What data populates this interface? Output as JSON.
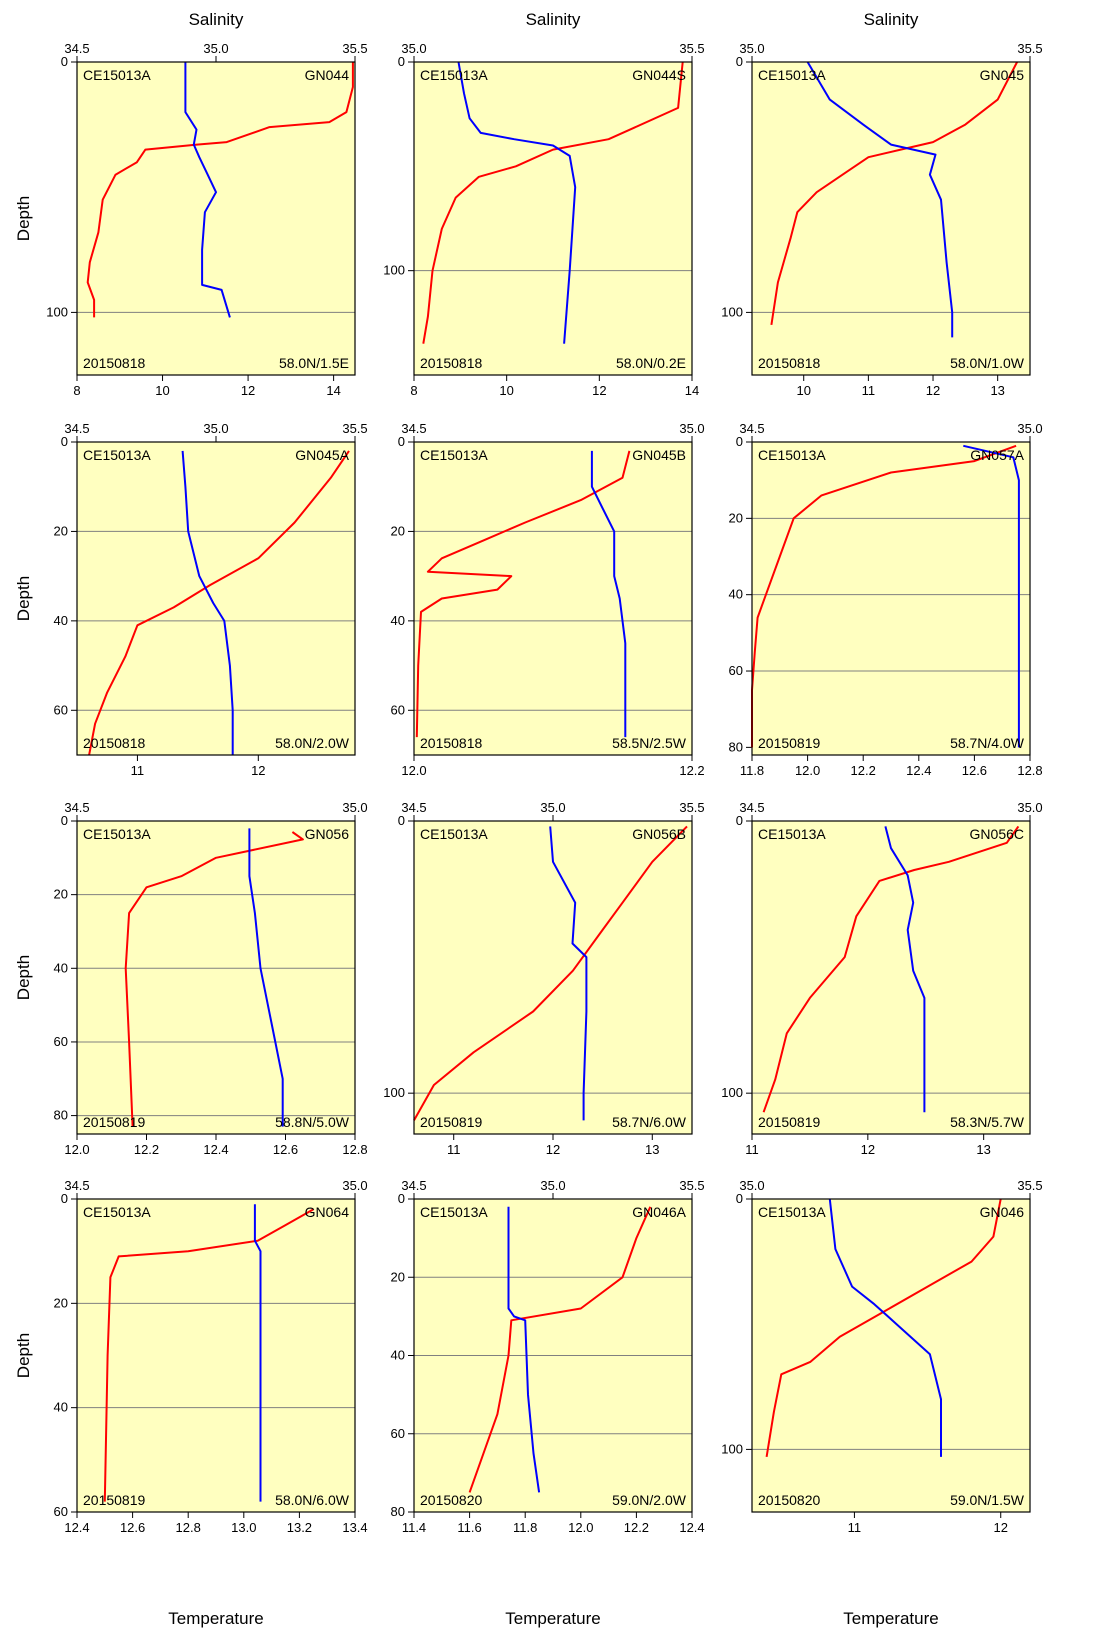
{
  "figure": {
    "column_label": "Salinity",
    "y_axis_label": "Depth",
    "x_axis_label": "Temperature"
  },
  "colors": {
    "background": "#ffffc0",
    "temperature_line": "#ff0000",
    "salinity_line": "#0000ff",
    "grid": "#808080"
  },
  "chart_data": [
    {
      "type": "line",
      "cruise": "CE15013A",
      "station": "GN044",
      "date": "20150818",
      "position": "58.0N/1.5E",
      "depth_range": [
        0,
        125
      ],
      "depth_ticks": [
        0,
        100
      ],
      "depth_grid": [
        100
      ],
      "temp_range": [
        8,
        14.5
      ],
      "temp_ticks": [
        8,
        10,
        12,
        14
      ],
      "sal_range": [
        34.5,
        35.5
      ],
      "sal_ticks": [
        "34.5",
        "35.0",
        "35.5"
      ],
      "temperature": [
        [
          14.45,
          0
        ],
        [
          14.45,
          10
        ],
        [
          14.3,
          20
        ],
        [
          13.9,
          24
        ],
        [
          12.5,
          26
        ],
        [
          11.5,
          32
        ],
        [
          10.8,
          33
        ],
        [
          9.6,
          35
        ],
        [
          9.4,
          40
        ],
        [
          8.9,
          45
        ],
        [
          8.6,
          55
        ],
        [
          8.5,
          68
        ],
        [
          8.3,
          80
        ],
        [
          8.25,
          88
        ],
        [
          8.4,
          95
        ],
        [
          8.4,
          102
        ]
      ],
      "salinity": [
        [
          34.89,
          0
        ],
        [
          34.89,
          20
        ],
        [
          34.93,
          27
        ],
        [
          34.92,
          33
        ],
        [
          34.94,
          38
        ],
        [
          34.97,
          45
        ],
        [
          35.0,
          52
        ],
        [
          34.96,
          60
        ],
        [
          34.95,
          75
        ],
        [
          34.95,
          89
        ],
        [
          35.02,
          91
        ],
        [
          35.05,
          102
        ]
      ]
    },
    {
      "type": "line",
      "cruise": "CE15013A",
      "station": "GN044S",
      "date": "20150818",
      "position": "58.0N/0.2E",
      "depth_range": [
        0,
        150
      ],
      "depth_ticks": [
        0,
        100
      ],
      "depth_grid": [
        100
      ],
      "temp_range": [
        8,
        14
      ],
      "temp_ticks": [
        8,
        10,
        12,
        14
      ],
      "sal_range": [
        35.0,
        35.5
      ],
      "sal_ticks": [
        "35.0",
        "35.5"
      ],
      "temperature": [
        [
          13.8,
          0
        ],
        [
          13.7,
          22
        ],
        [
          12.2,
          37
        ],
        [
          11.0,
          42
        ],
        [
          10.2,
          50
        ],
        [
          9.4,
          55
        ],
        [
          8.9,
          65
        ],
        [
          8.6,
          80
        ],
        [
          8.4,
          100
        ],
        [
          8.3,
          122
        ],
        [
          8.2,
          135
        ]
      ],
      "salinity": [
        [
          35.08,
          0
        ],
        [
          35.09,
          15
        ],
        [
          35.1,
          27
        ],
        [
          35.12,
          34
        ],
        [
          35.18,
          37
        ],
        [
          35.25,
          40
        ],
        [
          35.28,
          45
        ],
        [
          35.29,
          60
        ],
        [
          35.28,
          100
        ],
        [
          35.27,
          135
        ]
      ]
    },
    {
      "type": "line",
      "cruise": "CE15013A",
      "station": "GN045",
      "date": "20150818",
      "position": "58.0N/1.0W",
      "depth_range": [
        0,
        125
      ],
      "depth_ticks": [
        0,
        100
      ],
      "depth_grid": [
        100
      ],
      "temp_range": [
        9.2,
        13.5
      ],
      "temp_ticks": [
        10,
        11,
        12,
        13
      ],
      "sal_range": [
        35.0,
        35.5
      ],
      "sal_ticks": [
        "35.0",
        "35.5"
      ],
      "temperature": [
        [
          13.3,
          0
        ],
        [
          13.0,
          15
        ],
        [
          12.5,
          25
        ],
        [
          12.0,
          32
        ],
        [
          11.5,
          35
        ],
        [
          11.0,
          38
        ],
        [
          10.6,
          45
        ],
        [
          10.2,
          52
        ],
        [
          9.9,
          60
        ],
        [
          9.8,
          70
        ],
        [
          9.6,
          88
        ],
        [
          9.5,
          105
        ]
      ],
      "salinity": [
        [
          35.1,
          0
        ],
        [
          35.14,
          15
        ],
        [
          35.2,
          25
        ],
        [
          35.25,
          33
        ],
        [
          35.33,
          37
        ],
        [
          35.32,
          45
        ],
        [
          35.34,
          55
        ],
        [
          35.35,
          80
        ],
        [
          35.36,
          100
        ],
        [
          35.36,
          110
        ]
      ]
    },
    {
      "type": "line",
      "cruise": "CE15013A",
      "station": "GN045A",
      "date": "20150818",
      "position": "58.0N/2.0W",
      "depth_range": [
        0,
        70
      ],
      "depth_ticks": [
        0,
        20,
        40,
        60
      ],
      "depth_grid": [
        20,
        40,
        60
      ],
      "temp_range": [
        10.5,
        12.8
      ],
      "temp_ticks": [
        11,
        12
      ],
      "sal_range": [
        34.5,
        35.5
      ],
      "sal_ticks": [
        "34.5",
        "35.0",
        "35.5"
      ],
      "temperature": [
        [
          12.75,
          2
        ],
        [
          12.6,
          8
        ],
        [
          12.3,
          18
        ],
        [
          12.0,
          26
        ],
        [
          11.6,
          32
        ],
        [
          11.3,
          37
        ],
        [
          11.0,
          41
        ],
        [
          10.9,
          48
        ],
        [
          10.75,
          56
        ],
        [
          10.65,
          63
        ],
        [
          10.6,
          70
        ]
      ],
      "salinity": [
        [
          34.88,
          2
        ],
        [
          34.89,
          10
        ],
        [
          34.9,
          20
        ],
        [
          34.94,
          30
        ],
        [
          34.99,
          36
        ],
        [
          35.03,
          40
        ],
        [
          35.05,
          50
        ],
        [
          35.06,
          60
        ],
        [
          35.06,
          70
        ]
      ]
    },
    {
      "type": "line",
      "cruise": "CE15013A",
      "station": "GN045B",
      "date": "20150818",
      "position": "58.5N/2.5W",
      "depth_range": [
        0,
        70
      ],
      "depth_ticks": [
        0,
        20,
        40,
        60
      ],
      "depth_grid": [
        20,
        40,
        60
      ],
      "temp_range": [
        12.0,
        12.2
      ],
      "temp_ticks": [
        "12.0",
        "12.2"
      ],
      "sal_range": [
        34.5,
        35.0
      ],
      "sal_ticks": [
        "34.5",
        "35.0"
      ],
      "temperature": [
        [
          12.155,
          2
        ],
        [
          12.15,
          8
        ],
        [
          12.12,
          13
        ],
        [
          12.08,
          18
        ],
        [
          12.05,
          22
        ],
        [
          12.02,
          26
        ],
        [
          12.01,
          29
        ],
        [
          12.07,
          30
        ],
        [
          12.06,
          33
        ],
        [
          12.02,
          35
        ],
        [
          12.005,
          38
        ],
        [
          12.003,
          50
        ],
        [
          12.002,
          66
        ]
      ],
      "salinity": [
        [
          34.82,
          2
        ],
        [
          34.82,
          10
        ],
        [
          34.84,
          15
        ],
        [
          34.86,
          20
        ],
        [
          34.86,
          30
        ],
        [
          34.87,
          35
        ],
        [
          34.88,
          45
        ],
        [
          34.88,
          66
        ]
      ]
    },
    {
      "type": "line",
      "cruise": "CE15013A",
      "station": "GN057A",
      "date": "20150819",
      "position": "58.7N/4.0W",
      "depth_range": [
        0,
        82
      ],
      "depth_ticks": [
        0,
        20,
        40,
        60,
        80
      ],
      "depth_grid": [
        20,
        40,
        60
      ],
      "temp_range": [
        11.8,
        12.8
      ],
      "temp_ticks": [
        "11.8",
        "12.0",
        "12.2",
        "12.4",
        "12.6",
        "12.8"
      ],
      "sal_range": [
        34.5,
        35.0
      ],
      "sal_ticks": [
        "34.5",
        "35.0"
      ],
      "temperature": [
        [
          12.75,
          1
        ],
        [
          12.6,
          5
        ],
        [
          12.3,
          8
        ],
        [
          12.05,
          14
        ],
        [
          11.95,
          20
        ],
        [
          11.9,
          30
        ],
        [
          11.85,
          40
        ],
        [
          11.82,
          46
        ],
        [
          11.81,
          55
        ],
        [
          11.8,
          65
        ],
        [
          11.8,
          80
        ]
      ],
      "salinity": [
        [
          34.88,
          1
        ],
        [
          34.97,
          4
        ],
        [
          34.98,
          10
        ],
        [
          34.98,
          40
        ],
        [
          34.98,
          80
        ]
      ]
    },
    {
      "type": "line",
      "cruise": "CE15013A",
      "station": "GN056",
      "date": "20150819",
      "position": "58.8N/5.0W",
      "depth_range": [
        0,
        85
      ],
      "depth_ticks": [
        0,
        20,
        40,
        60,
        80
      ],
      "depth_grid": [
        20,
        40,
        60,
        80
      ],
      "temp_range": [
        12.0,
        12.8
      ],
      "temp_ticks": [
        "12.0",
        "12.2",
        "12.4",
        "12.6",
        "12.8"
      ],
      "sal_range": [
        34.5,
        35.0
      ],
      "sal_ticks": [
        "34.5",
        "35.0"
      ],
      "temperature": [
        [
          12.62,
          3
        ],
        [
          12.65,
          5
        ],
        [
          12.4,
          10
        ],
        [
          12.3,
          15
        ],
        [
          12.2,
          18
        ],
        [
          12.15,
          25
        ],
        [
          12.14,
          40
        ],
        [
          12.15,
          60
        ],
        [
          12.16,
          83
        ]
      ],
      "salinity": [
        [
          34.81,
          2
        ],
        [
          34.81,
          15
        ],
        [
          34.82,
          25
        ],
        [
          34.83,
          40
        ],
        [
          34.85,
          55
        ],
        [
          34.87,
          70
        ],
        [
          34.87,
          83
        ]
      ]
    },
    {
      "type": "line",
      "cruise": "CE15013A",
      "station": "GN056B",
      "date": "20150819",
      "position": "58.7N/6.0W",
      "depth_range": [
        0,
        115
      ],
      "depth_ticks": [
        0,
        100
      ],
      "depth_grid": [
        100
      ],
      "temp_range": [
        10.6,
        13.4
      ],
      "temp_ticks": [
        11,
        12,
        13
      ],
      "sal_range": [
        34.5,
        35.5
      ],
      "sal_ticks": [
        "34.5",
        "35.0",
        "35.5"
      ],
      "temperature": [
        [
          13.35,
          2
        ],
        [
          13.0,
          15
        ],
        [
          12.7,
          30
        ],
        [
          12.5,
          40
        ],
        [
          12.2,
          55
        ],
        [
          11.8,
          70
        ],
        [
          11.2,
          85
        ],
        [
          10.8,
          97
        ],
        [
          10.6,
          110
        ]
      ],
      "salinity": [
        [
          34.99,
          2
        ],
        [
          35.0,
          15
        ],
        [
          35.08,
          30
        ],
        [
          35.07,
          45
        ],
        [
          35.12,
          50
        ],
        [
          35.12,
          70
        ],
        [
          35.11,
          100
        ],
        [
          35.11,
          110
        ]
      ]
    },
    {
      "type": "line",
      "cruise": "CE15013A",
      "station": "GN056C",
      "date": "20150819",
      "position": "58.3N/5.7W",
      "depth_range": [
        0,
        115
      ],
      "depth_ticks": [
        0,
        100
      ],
      "depth_grid": [
        100
      ],
      "temp_range": [
        11.0,
        13.4
      ],
      "temp_ticks": [
        11,
        12,
        13
      ],
      "sal_range": [
        34.5,
        35.0
      ],
      "sal_ticks": [
        "34.5",
        "35.0"
      ],
      "temperature": [
        [
          13.3,
          2
        ],
        [
          13.2,
          8
        ],
        [
          12.7,
          15
        ],
        [
          12.4,
          18
        ],
        [
          12.1,
          22
        ],
        [
          11.9,
          35
        ],
        [
          11.8,
          50
        ],
        [
          11.5,
          65
        ],
        [
          11.3,
          78
        ],
        [
          11.2,
          95
        ],
        [
          11.1,
          107
        ]
      ],
      "salinity": [
        [
          34.74,
          2
        ],
        [
          34.75,
          10
        ],
        [
          34.78,
          20
        ],
        [
          34.79,
          30
        ],
        [
          34.78,
          40
        ],
        [
          34.79,
          55
        ],
        [
          34.81,
          65
        ],
        [
          34.81,
          107
        ]
      ]
    },
    {
      "type": "line",
      "cruise": "CE15013A",
      "station": "GN064",
      "date": "20150819",
      "position": "58.0N/6.0W",
      "depth_range": [
        0,
        60
      ],
      "depth_ticks": [
        0,
        20,
        40,
        60
      ],
      "depth_grid": [
        20,
        40
      ],
      "temp_range": [
        12.4,
        13.4
      ],
      "temp_ticks": [
        "12.4",
        "12.6",
        "12.8",
        "13.0",
        "13.2",
        "13.4"
      ],
      "sal_range": [
        34.5,
        35.0
      ],
      "sal_ticks": [
        "34.5",
        "35.0"
      ],
      "temperature": [
        [
          13.25,
          2
        ],
        [
          13.15,
          5
        ],
        [
          13.05,
          8
        ],
        [
          12.8,
          10
        ],
        [
          12.55,
          11
        ],
        [
          12.52,
          15
        ],
        [
          12.51,
          30
        ],
        [
          12.5,
          58
        ]
      ],
      "salinity": [
        [
          34.82,
          1
        ],
        [
          34.82,
          8
        ],
        [
          34.83,
          10
        ],
        [
          34.83,
          30
        ],
        [
          34.83,
          58
        ]
      ]
    },
    {
      "type": "line",
      "cruise": "CE15013A",
      "station": "GN046A",
      "date": "20150820",
      "position": "59.0N/2.0W",
      "depth_range": [
        0,
        80
      ],
      "depth_ticks": [
        0,
        20,
        40,
        60,
        80
      ],
      "depth_grid": [
        20,
        40,
        60
      ],
      "temp_range": [
        11.4,
        12.4
      ],
      "temp_ticks": [
        "11.4",
        "11.6",
        "11.8",
        "12.0",
        "12.2",
        "12.4"
      ],
      "sal_range": [
        34.5,
        35.5
      ],
      "sal_ticks": [
        "34.5",
        "35.0",
        "35.5"
      ],
      "temperature": [
        [
          12.25,
          2
        ],
        [
          12.2,
          10
        ],
        [
          12.15,
          20
        ],
        [
          12.0,
          28
        ],
        [
          11.75,
          31
        ],
        [
          11.74,
          40
        ],
        [
          11.7,
          55
        ],
        [
          11.65,
          65
        ],
        [
          11.6,
          75
        ]
      ],
      "salinity": [
        [
          34.84,
          2
        ],
        [
          34.84,
          28
        ],
        [
          34.86,
          30
        ],
        [
          34.9,
          31
        ],
        [
          34.91,
          50
        ],
        [
          34.93,
          65
        ],
        [
          34.95,
          75
        ]
      ]
    },
    {
      "type": "line",
      "cruise": "CE15013A",
      "station": "GN046",
      "date": "20150820",
      "position": "59.0N/1.5W",
      "depth_range": [
        0,
        125
      ],
      "depth_ticks": [
        0,
        100
      ],
      "depth_grid": [
        100
      ],
      "temp_range": [
        10.3,
        12.2
      ],
      "temp_ticks": [
        11,
        12
      ],
      "sal_range": [
        35.0,
        35.5
      ],
      "sal_ticks": [
        "35.0",
        "35.5"
      ],
      "temperature": [
        [
          12.0,
          0
        ],
        [
          11.95,
          15
        ],
        [
          11.8,
          25
        ],
        [
          11.5,
          35
        ],
        [
          11.2,
          45
        ],
        [
          10.9,
          55
        ],
        [
          10.7,
          65
        ],
        [
          10.5,
          70
        ],
        [
          10.45,
          85
        ],
        [
          10.4,
          103
        ]
      ],
      "salinity": [
        [
          35.14,
          0
        ],
        [
          35.15,
          20
        ],
        [
          35.18,
          35
        ],
        [
          35.22,
          42
        ],
        [
          35.26,
          50
        ],
        [
          35.32,
          62
        ],
        [
          35.34,
          80
        ],
        [
          35.34,
          103
        ]
      ]
    }
  ]
}
